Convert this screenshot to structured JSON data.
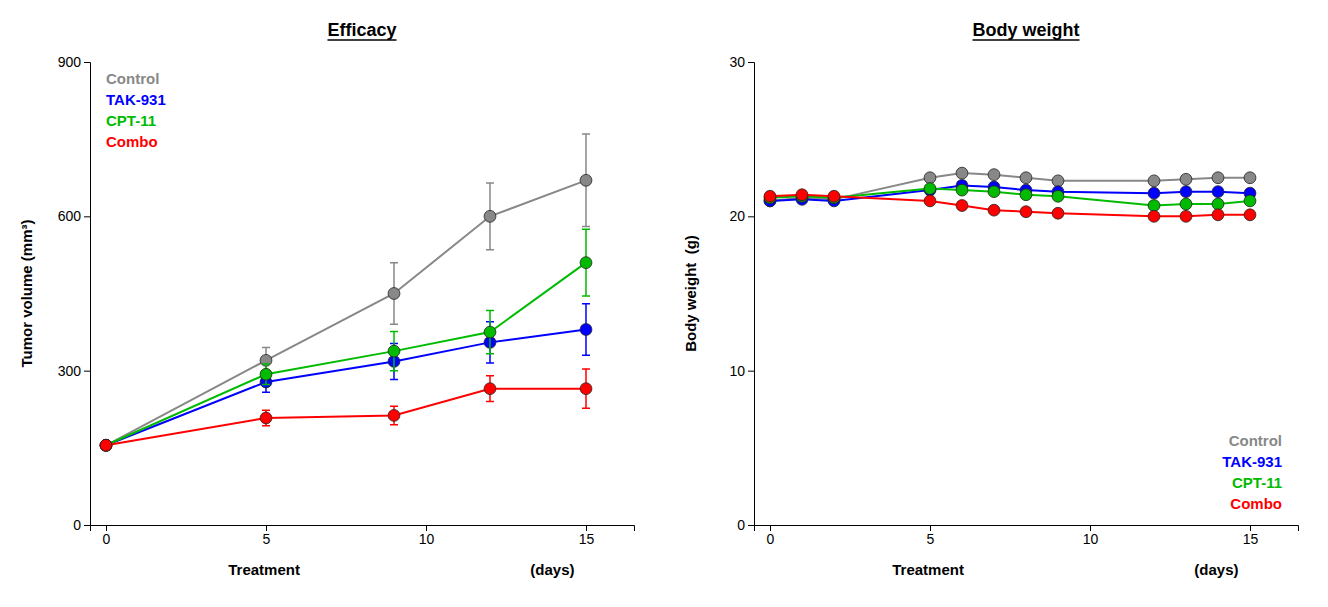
{
  "chart_data": [
    {
      "type": "line",
      "title": "Efficacy",
      "xlabel": [
        "Treatment",
        "(days)"
      ],
      "ylabel": "Tumor volume (mm³)",
      "x": [
        0,
        5,
        9,
        12,
        15
      ],
      "xlim": [
        -0.5,
        16.5
      ],
      "xticks": [
        0,
        5,
        10,
        15
      ],
      "ylim": [
        0,
        900
      ],
      "yticks": [
        0,
        300,
        600,
        900
      ],
      "grid": false,
      "legend": "upper left",
      "marker": "circle",
      "series": [
        {
          "name": "Control",
          "color": "#888888",
          "values": [
            155,
            320,
            450,
            600,
            670
          ],
          "errors": [
            8,
            25,
            60,
            65,
            90
          ]
        },
        {
          "name": "TAK-931",
          "color": "#0000ff",
          "values": [
            155,
            278,
            318,
            355,
            380
          ],
          "errors": [
            8,
            20,
            35,
            40,
            50
          ]
        },
        {
          "name": "CPT-11",
          "color": "#00bb00",
          "values": [
            155,
            293,
            338,
            375,
            510
          ],
          "errors": [
            8,
            20,
            38,
            42,
            65
          ]
        },
        {
          "name": "Combo",
          "color": "#ff0000",
          "values": [
            155,
            208,
            213,
            265,
            265
          ],
          "errors": [
            8,
            15,
            18,
            25,
            38
          ]
        }
      ]
    },
    {
      "type": "line",
      "title": "Body weight",
      "xlabel": [
        "Treatment",
        "(days)"
      ],
      "ylabel": "Body weight  (g)",
      "x": [
        0,
        1,
        2,
        5,
        6,
        7,
        8,
        9,
        12,
        13,
        14,
        15
      ],
      "xlim": [
        -0.5,
        16.5
      ],
      "xticks": [
        0,
        5,
        10,
        15
      ],
      "ylim": [
        0,
        30
      ],
      "yticks": [
        0,
        10,
        20,
        30
      ],
      "grid": false,
      "legend": "lower right",
      "marker": "circle",
      "series": [
        {
          "name": "Control",
          "color": "#888888",
          "values": [
            21.0,
            21.2,
            21.1,
            22.5,
            22.8,
            22.7,
            22.5,
            22.3,
            22.3,
            22.4,
            22.5,
            22.5
          ],
          "errors": [
            0.2,
            0.2,
            0.2,
            0.2,
            0.2,
            0.2,
            0.2,
            0.2,
            0.2,
            0.2,
            0.2,
            0.2
          ]
        },
        {
          "name": "TAK-931",
          "color": "#0000ff",
          "values": [
            21.0,
            21.1,
            21.0,
            21.7,
            22.0,
            21.9,
            21.7,
            21.6,
            21.5,
            21.6,
            21.6,
            21.5
          ],
          "errors": [
            0.2,
            0.2,
            0.2,
            0.2,
            0.2,
            0.2,
            0.2,
            0.2,
            0.2,
            0.2,
            0.2,
            0.2
          ]
        },
        {
          "name": "CPT-11",
          "color": "#00bb00",
          "values": [
            21.2,
            21.3,
            21.2,
            21.8,
            21.7,
            21.6,
            21.4,
            21.3,
            20.7,
            20.8,
            20.8,
            21.0
          ],
          "errors": [
            0.2,
            0.2,
            0.2,
            0.2,
            0.2,
            0.2,
            0.2,
            0.2,
            0.2,
            0.2,
            0.2,
            0.2
          ]
        },
        {
          "name": "Combo",
          "color": "#ff0000",
          "values": [
            21.3,
            21.4,
            21.3,
            21.0,
            20.7,
            20.4,
            20.3,
            20.2,
            20.0,
            20.0,
            20.1,
            20.1
          ],
          "errors": [
            0.2,
            0.2,
            0.2,
            0.2,
            0.2,
            0.2,
            0.2,
            0.2,
            0.2,
            0.2,
            0.2,
            0.2
          ]
        }
      ]
    }
  ]
}
